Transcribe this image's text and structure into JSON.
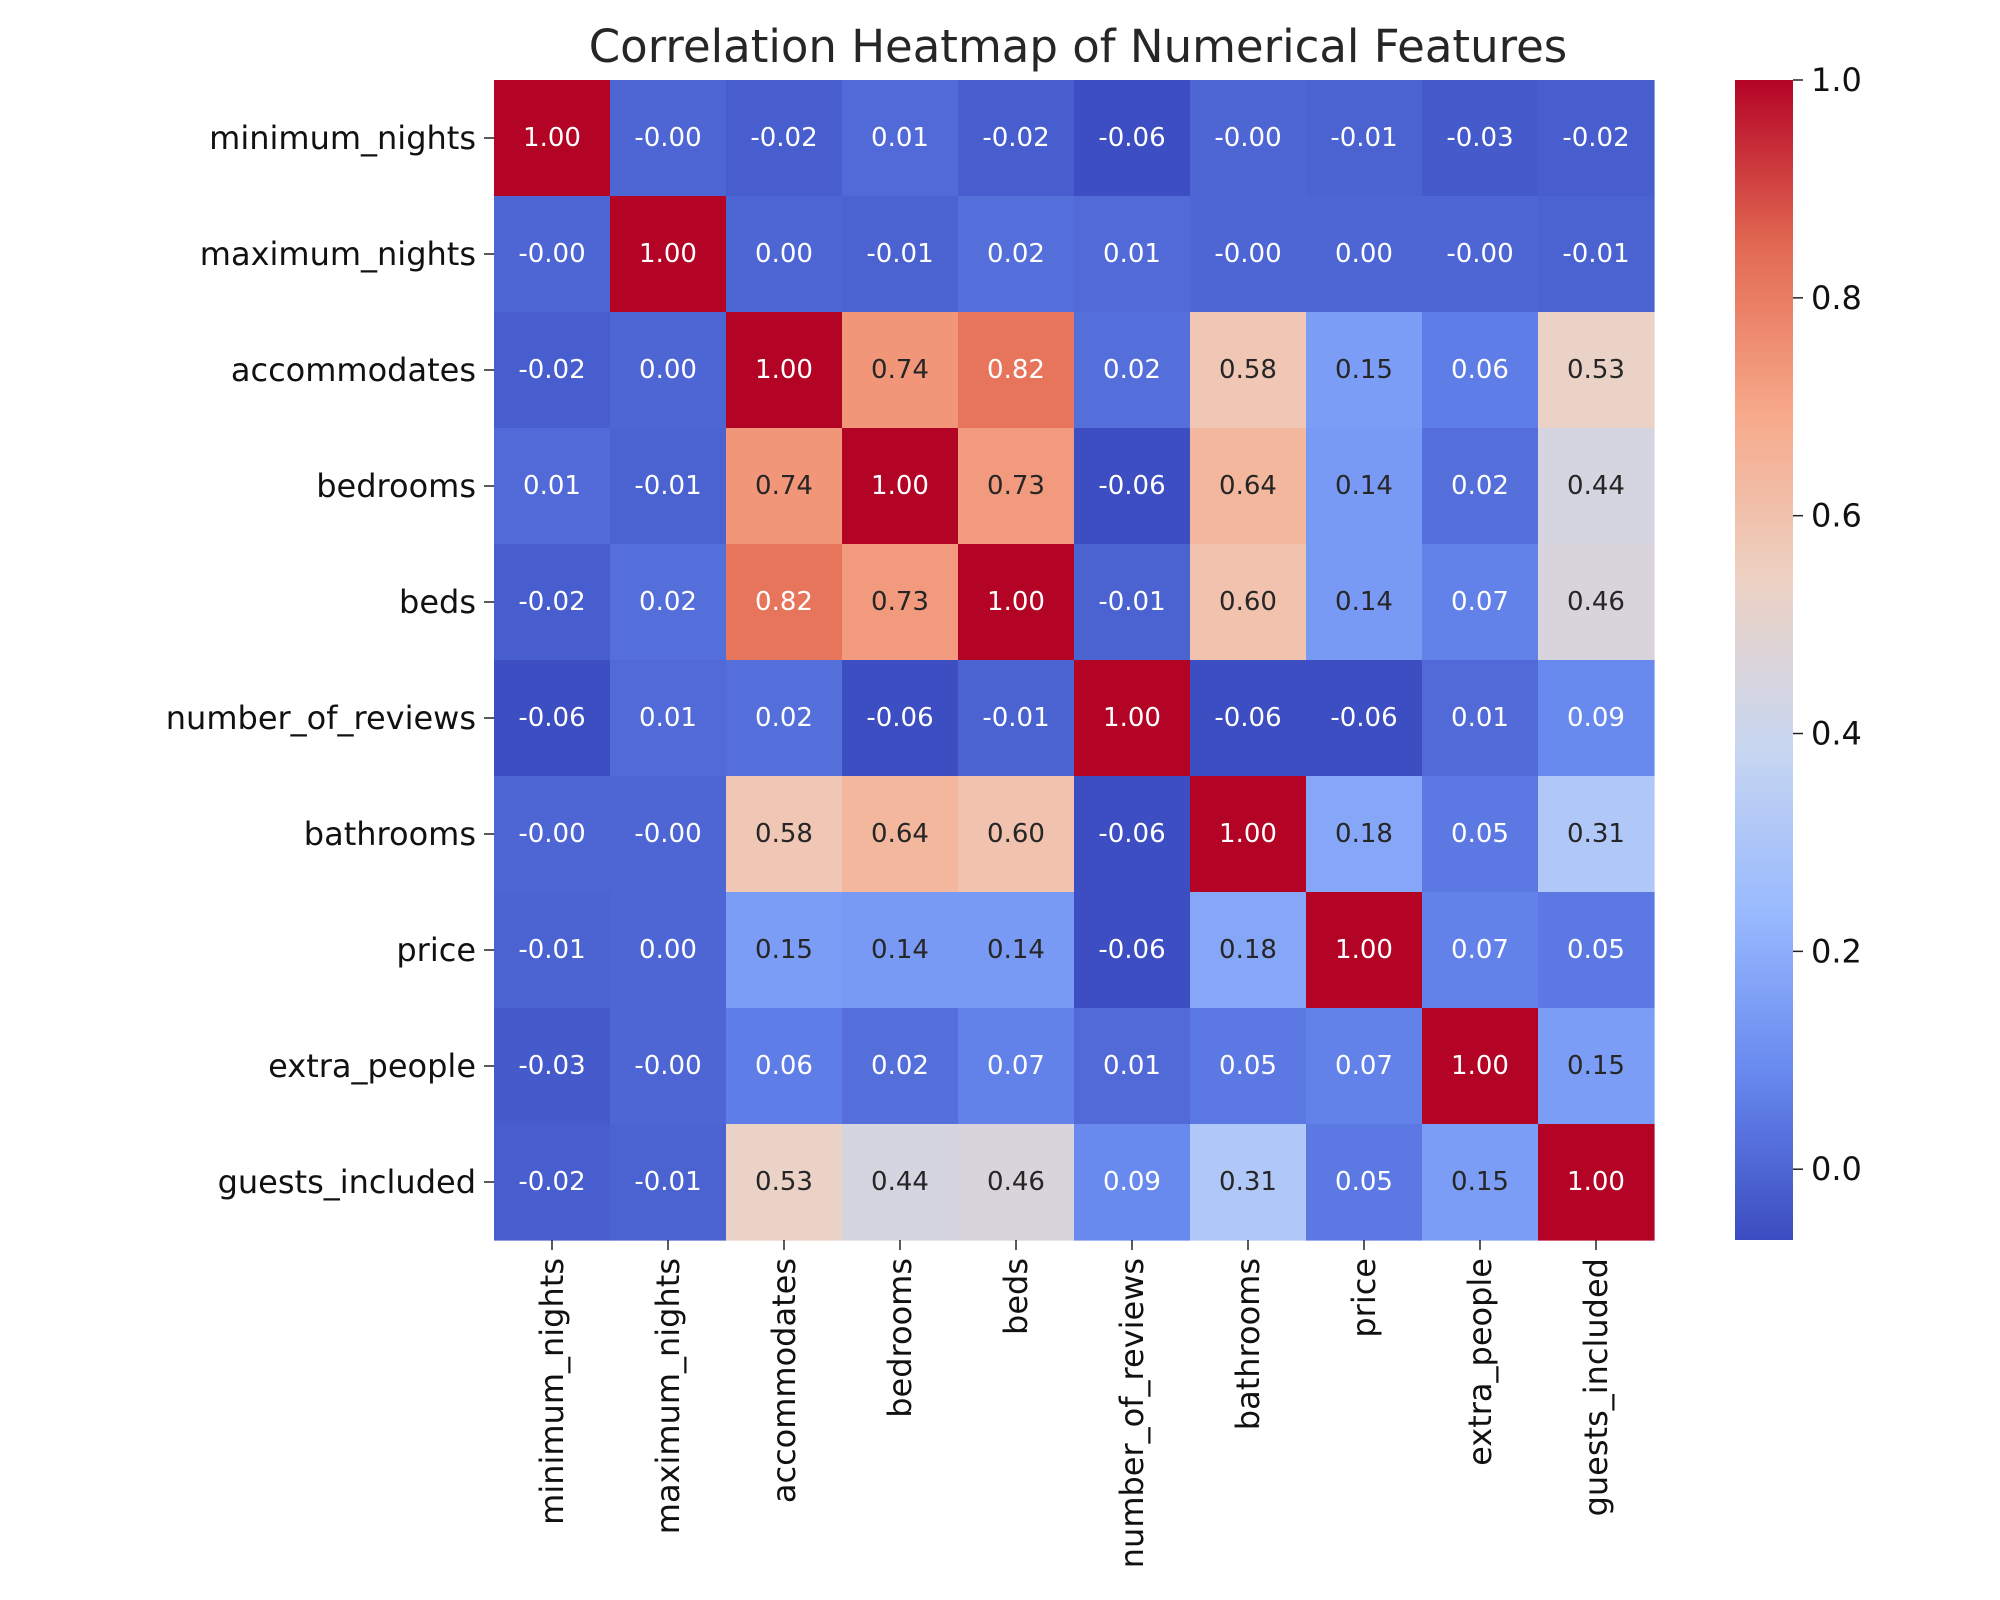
{
  "chart_data": {
    "type": "heatmap",
    "title": "Correlation Heatmap of Numerical Features",
    "xlabel": "",
    "ylabel": "",
    "grid": false,
    "legend": "colorbar-right",
    "colormap": "coolwarm",
    "color_range": [
      -0.065,
      1.0
    ],
    "colormap_stops": [
      "#3b4cc0",
      "#6788ee",
      "#9abbff",
      "#c9d7f0",
      "#edd1c2",
      "#f7a889",
      "#e26952",
      "#b40426"
    ],
    "annotation_light_color": "#ffffff",
    "annotation_dark_color": "#262626",
    "labels": [
      "minimum_nights",
      "maximum_nights",
      "accommodates",
      "bedrooms",
      "beds",
      "number_of_reviews",
      "bathrooms",
      "price",
      "extra_people",
      "guests_included"
    ],
    "matrix": [
      [
        1.0,
        -0.0,
        -0.02,
        0.01,
        -0.02,
        -0.06,
        -0.0,
        -0.01,
        -0.03,
        -0.02
      ],
      [
        -0.0,
        1.0,
        0.0,
        -0.01,
        0.02,
        0.01,
        -0.0,
        0.0,
        -0.0,
        -0.01
      ],
      [
        -0.02,
        0.0,
        1.0,
        0.74,
        0.82,
        0.02,
        0.58,
        0.15,
        0.06,
        0.53
      ],
      [
        0.01,
        -0.01,
        0.74,
        1.0,
        0.73,
        -0.06,
        0.64,
        0.14,
        0.02,
        0.44
      ],
      [
        -0.02,
        0.02,
        0.82,
        0.73,
        1.0,
        -0.01,
        0.6,
        0.14,
        0.07,
        0.46
      ],
      [
        -0.06,
        0.01,
        0.02,
        -0.06,
        -0.01,
        1.0,
        -0.06,
        -0.06,
        0.01,
        0.09
      ],
      [
        -0.0,
        -0.0,
        0.58,
        0.64,
        0.6,
        -0.06,
        1.0,
        0.18,
        0.05,
        0.31
      ],
      [
        -0.01,
        0.0,
        0.15,
        0.14,
        0.14,
        -0.06,
        0.18,
        1.0,
        0.07,
        0.05
      ],
      [
        -0.03,
        -0.0,
        0.06,
        0.02,
        0.07,
        0.01,
        0.05,
        0.07,
        1.0,
        0.15
      ],
      [
        -0.02,
        -0.01,
        0.53,
        0.44,
        0.46,
        0.09,
        0.31,
        0.05,
        0.15,
        1.0
      ]
    ],
    "annotations": [
      [
        "1.00",
        "-0.00",
        "-0.02",
        "0.01",
        "-0.02",
        "-0.06",
        "-0.00",
        "-0.01",
        "-0.03",
        "-0.02"
      ],
      [
        "-0.00",
        "1.00",
        "0.00",
        "-0.01",
        "0.02",
        "0.01",
        "-0.00",
        "0.00",
        "-0.00",
        "-0.01"
      ],
      [
        "-0.02",
        "0.00",
        "1.00",
        "0.74",
        "0.82",
        "0.02",
        "0.58",
        "0.15",
        "0.06",
        "0.53"
      ],
      [
        "0.01",
        "-0.01",
        "0.74",
        "1.00",
        "0.73",
        "-0.06",
        "0.64",
        "0.14",
        "0.02",
        "0.44"
      ],
      [
        "-0.02",
        "0.02",
        "0.82",
        "0.73",
        "1.00",
        "-0.01",
        "0.60",
        "0.14",
        "0.07",
        "0.46"
      ],
      [
        "-0.06",
        "0.01",
        "0.02",
        "-0.06",
        "-0.01",
        "1.00",
        "-0.06",
        "-0.06",
        "0.01",
        "0.09"
      ],
      [
        "-0.00",
        "-0.00",
        "0.58",
        "0.64",
        "0.60",
        "-0.06",
        "1.00",
        "0.18",
        "0.05",
        "0.31"
      ],
      [
        "-0.01",
        "0.00",
        "0.15",
        "0.14",
        "0.14",
        "-0.06",
        "0.18",
        "1.00",
        "0.07",
        "0.05"
      ],
      [
        "-0.03",
        "-0.00",
        "0.06",
        "0.02",
        "0.07",
        "0.01",
        "0.05",
        "0.07",
        "1.00",
        "0.15"
      ],
      [
        "-0.02",
        "-0.01",
        "0.53",
        "0.44",
        "0.46",
        "0.09",
        "0.31",
        "0.05",
        "0.15",
        "1.00"
      ]
    ],
    "colorbar": {
      "ticks": [
        0.0,
        0.2,
        0.4,
        0.6,
        0.8,
        1.0
      ],
      "tick_labels": [
        "0.0",
        "0.2",
        "0.4",
        "0.6",
        "0.8",
        "1.0"
      ]
    }
  }
}
